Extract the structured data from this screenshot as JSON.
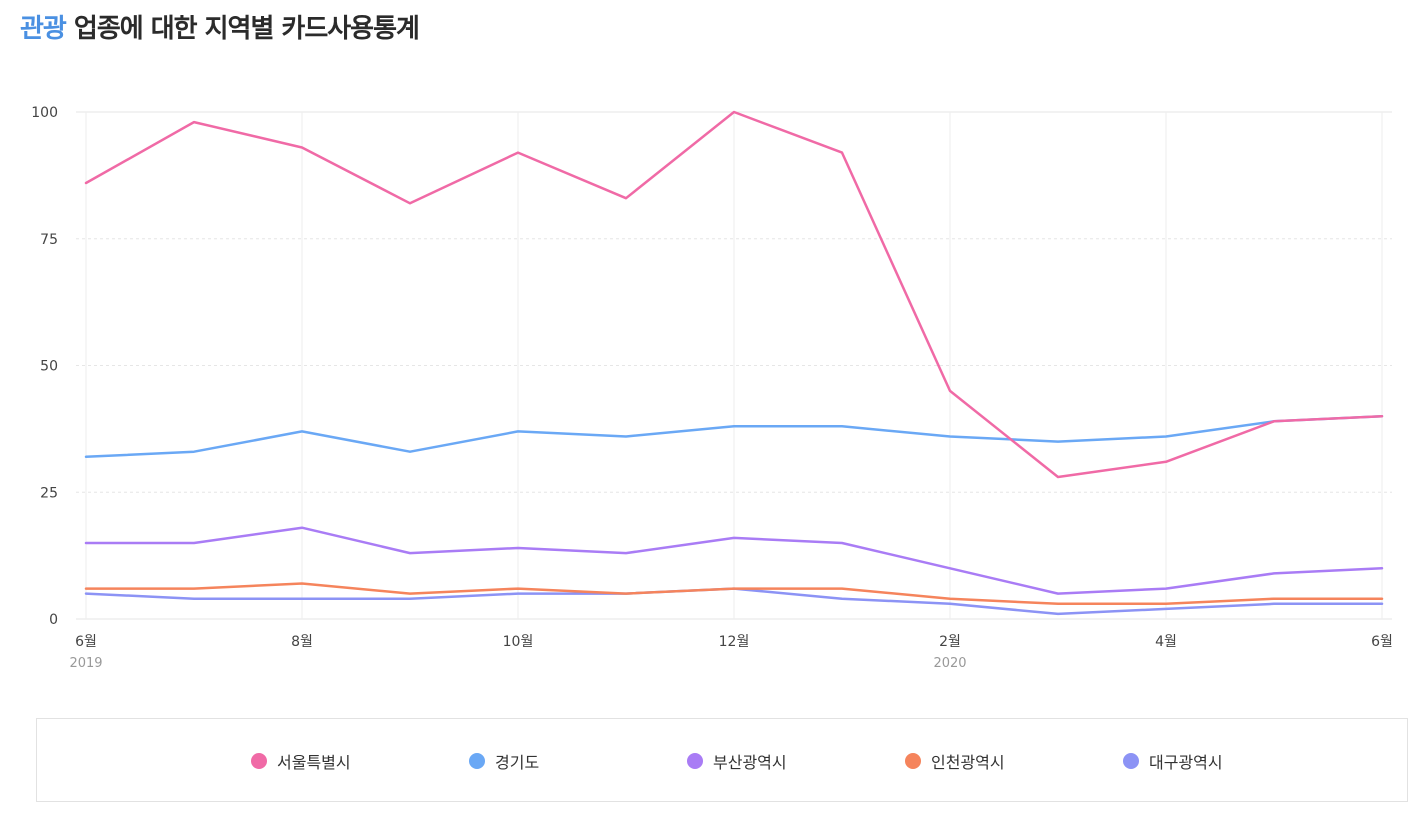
{
  "title": {
    "accent": "관광",
    "rest": "업종에 대한 지역별 카드사용통계"
  },
  "chart_data": {
    "type": "line",
    "title": "관광 업종에 대한 지역별 카드사용통계",
    "x": [
      "2019-06",
      "2019-07",
      "2019-08",
      "2019-09",
      "2019-10",
      "2019-11",
      "2019-12",
      "2020-01",
      "2020-02",
      "2020-03",
      "2020-04",
      "2020-05",
      "2020-06"
    ],
    "x_ticks": [
      {
        "x": "2019-06",
        "label": "6월",
        "sublabel": "2019"
      },
      {
        "x": "2019-08",
        "label": "8월",
        "sublabel": ""
      },
      {
        "x": "2019-10",
        "label": "10월",
        "sublabel": ""
      },
      {
        "x": "2019-12",
        "label": "12월",
        "sublabel": ""
      },
      {
        "x": "2020-02",
        "label": "2월",
        "sublabel": "2020"
      },
      {
        "x": "2020-04",
        "label": "4월",
        "sublabel": ""
      },
      {
        "x": "2020-06",
        "label": "6월",
        "sublabel": ""
      }
    ],
    "ylim": [
      0,
      100
    ],
    "y_ticks": [
      0,
      25,
      50,
      75,
      100
    ],
    "grid": true,
    "legend_position": "bottom",
    "series": [
      {
        "name": "서울특별시",
        "color": "#f06aa6",
        "values": [
          86,
          98,
          93,
          82,
          92,
          83,
          100,
          92,
          45,
          28,
          31,
          39,
          40
        ]
      },
      {
        "name": "경기도",
        "color": "#6aa8f5",
        "values": [
          32,
          33,
          37,
          33,
          37,
          36,
          38,
          38,
          36,
          35,
          36,
          39,
          40
        ]
      },
      {
        "name": "부산광역시",
        "color": "#a97cf5",
        "values": [
          15,
          15,
          18,
          13,
          14,
          13,
          16,
          15,
          10,
          5,
          6,
          9,
          10
        ]
      },
      {
        "name": "인천광역시",
        "color": "#f5845c",
        "values": [
          6,
          6,
          7,
          5,
          6,
          5,
          6,
          6,
          4,
          3,
          3,
          4,
          4
        ]
      },
      {
        "name": "대구광역시",
        "color": "#8c93f5",
        "values": [
          5,
          4,
          4,
          4,
          5,
          5,
          6,
          4,
          3,
          1,
          2,
          3,
          3
        ]
      }
    ]
  }
}
